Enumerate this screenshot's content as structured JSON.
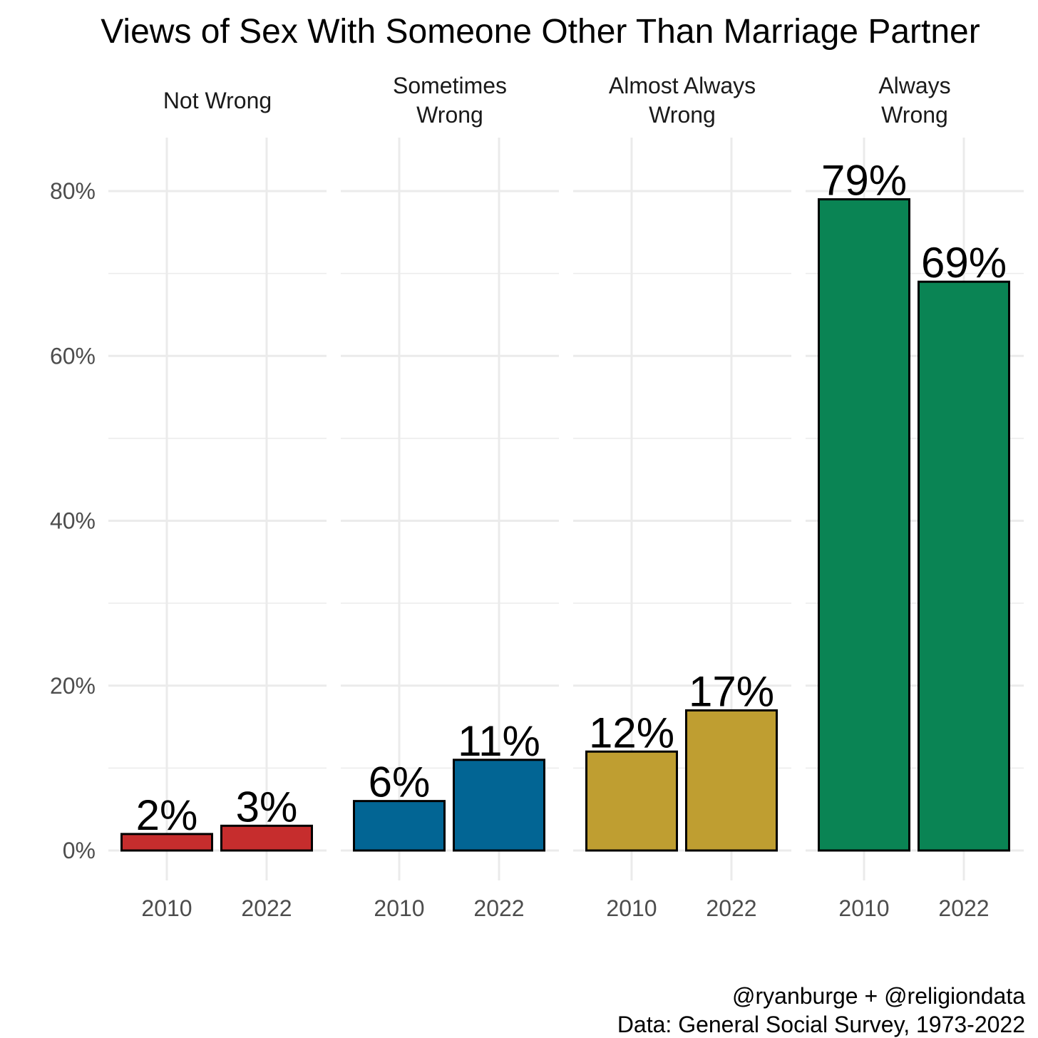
{
  "chart_data": {
    "type": "bar",
    "title": "Views of Sex With Someone Other Than Marriage Partner",
    "xlabel": "",
    "ylabel": "",
    "ylim": [
      0,
      80
    ],
    "y_ticks": [
      "0%",
      "20%",
      "40%",
      "60%",
      "80%"
    ],
    "grid": true,
    "facets": [
      {
        "label": "Not Wrong",
        "label_lines": [
          "Not Wrong"
        ],
        "color": "#c62d2d",
        "categories": [
          "2010",
          "2022"
        ],
        "values": [
          2,
          3
        ],
        "data_labels": [
          "2%",
          "3%"
        ]
      },
      {
        "label": "Sometimes Wrong",
        "label_lines": [
          "Sometimes",
          "Wrong"
        ],
        "color": "#026594",
        "categories": [
          "2010",
          "2022"
        ],
        "values": [
          6,
          11
        ],
        "data_labels": [
          "6%",
          "11%"
        ]
      },
      {
        "label": "Almost Always Wrong",
        "label_lines": [
          "Almost Always",
          "Wrong"
        ],
        "color": "#bf9e31",
        "categories": [
          "2010",
          "2022"
        ],
        "values": [
          12,
          17
        ],
        "data_labels": [
          "12%",
          "17%"
        ]
      },
      {
        "label": "Always Wrong",
        "label_lines": [
          "Always",
          "Wrong"
        ],
        "color": "#0a8454",
        "categories": [
          "2010",
          "2022"
        ],
        "values": [
          79,
          69
        ],
        "data_labels": [
          "79%",
          "69%"
        ]
      }
    ]
  },
  "caption": {
    "line1": "@ryanburge + @religiondata",
    "line2": "Data: General Social Survey, 1973-2022"
  }
}
